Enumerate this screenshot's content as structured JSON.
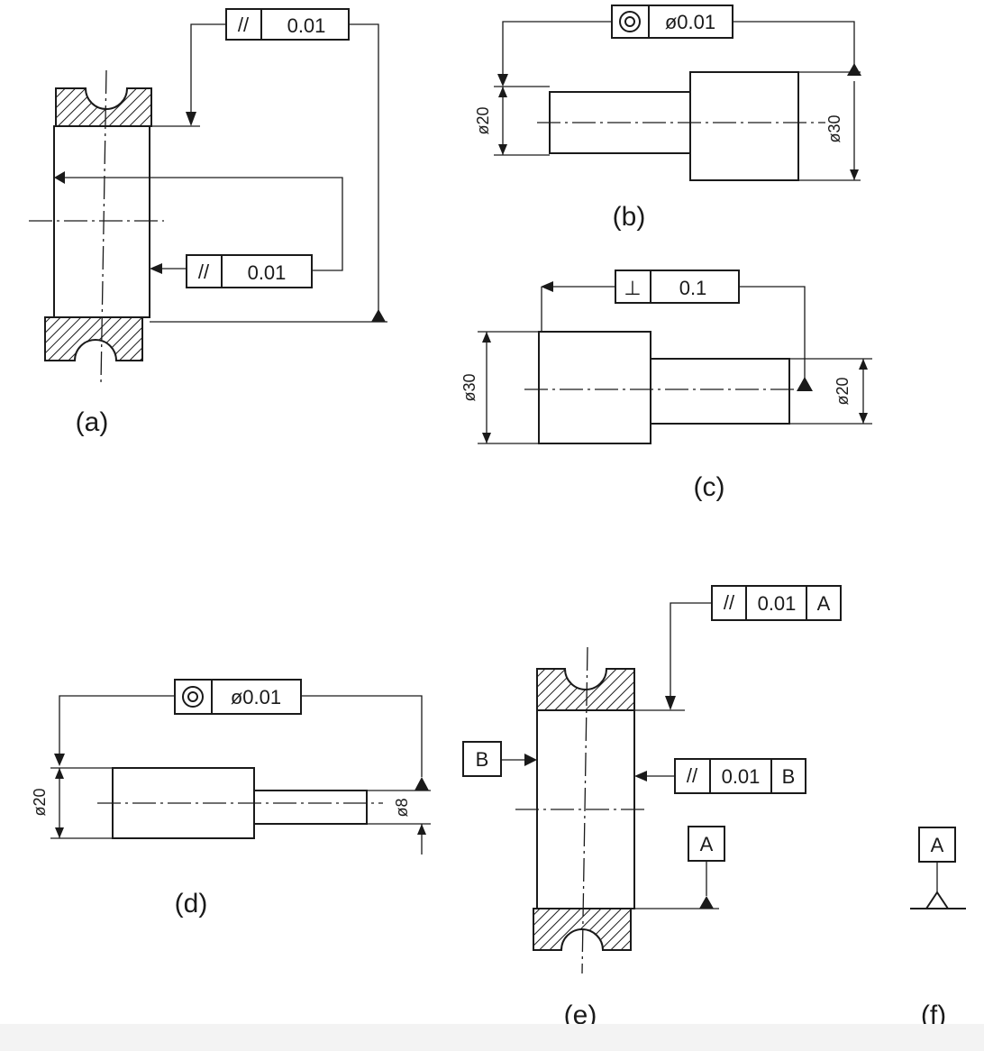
{
  "figures": {
    "a": {
      "label": "(a)",
      "fcf_top": {
        "symbol": "//",
        "value": "0.01"
      },
      "fcf_mid": {
        "symbol": "//",
        "value": "0.01"
      }
    },
    "b": {
      "label": "(b)",
      "fcf": {
        "symbol": "◎",
        "value": "ø0.01"
      },
      "dim_small": "ø20",
      "dim_large": "ø30"
    },
    "c": {
      "label": "(c)",
      "fcf": {
        "symbol": "⊥",
        "value": "0.1"
      },
      "dim_large": "ø30",
      "dim_small": "ø20"
    },
    "d": {
      "label": "(d)",
      "fcf": {
        "symbol": "◎",
        "value": "ø0.01"
      },
      "dim_large": "ø20",
      "dim_small": "ø8"
    },
    "e": {
      "label": "(e)",
      "fcf_top": {
        "symbol": "//",
        "value": "0.01",
        "datum": "A"
      },
      "fcf_mid": {
        "symbol": "//",
        "value": "0.01",
        "datum": "B"
      },
      "datum_b": "B",
      "datum_a": "A"
    },
    "f": {
      "label": "(f)",
      "datum": "A"
    }
  }
}
